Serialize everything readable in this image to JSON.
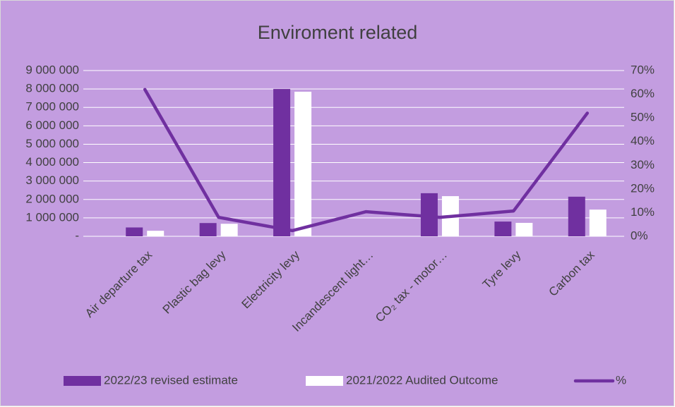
{
  "chart_data": {
    "type": "bar_line",
    "title": "Enviroment related",
    "categories": [
      "Air departure tax",
      "Plastic bag levy",
      "Electricity levy",
      "Incandescent light…",
      "CO₂ tax - motor…",
      "Tyre levy",
      "Carbon tax"
    ],
    "series": [
      {
        "name": "2022/23 revised estimate",
        "color": "#7030a0",
        "type": "bar",
        "values": [
          480000,
          720000,
          8000000,
          0,
          2340000,
          800000,
          2150000
        ]
      },
      {
        "name": "2021/2022 Audited Outcome",
        "color": "#ffffff",
        "type": "bar",
        "values": [
          300000,
          680000,
          7850000,
          0,
          2180000,
          730000,
          1450000
        ]
      },
      {
        "name": "%",
        "color": "#7030a0",
        "type": "line",
        "axis": "y2",
        "values": [
          62,
          8,
          2.4,
          10.4,
          8,
          10.7,
          52
        ]
      }
    ],
    "ylim": [
      0,
      9000000
    ],
    "yticks": [
      {
        "value": 0,
        "label": "-"
      },
      {
        "value": 1000000,
        "label": "1 000 000"
      },
      {
        "value": 2000000,
        "label": "2 000 000"
      },
      {
        "value": 3000000,
        "label": "3 000 000"
      },
      {
        "value": 4000000,
        "label": "4 000 000"
      },
      {
        "value": 5000000,
        "label": "5 000 000"
      },
      {
        "value": 6000000,
        "label": "6 000 000"
      },
      {
        "value": 7000000,
        "label": "7 000 000"
      },
      {
        "value": 8000000,
        "label": "8 000 000"
      },
      {
        "value": 9000000,
        "label": "9 000 000"
      }
    ],
    "y2lim": [
      0,
      70
    ],
    "y2ticks": [
      {
        "value": 0,
        "label": "0%"
      },
      {
        "value": 10,
        "label": "10%"
      },
      {
        "value": 20,
        "label": "20%"
      },
      {
        "value": 30,
        "label": "30%"
      },
      {
        "value": 40,
        "label": "40%"
      },
      {
        "value": 50,
        "label": "50%"
      },
      {
        "value": 60,
        "label": "60%"
      },
      {
        "value": 70,
        "label": "70%"
      }
    ],
    "grid": true,
    "legend": "bottom"
  }
}
